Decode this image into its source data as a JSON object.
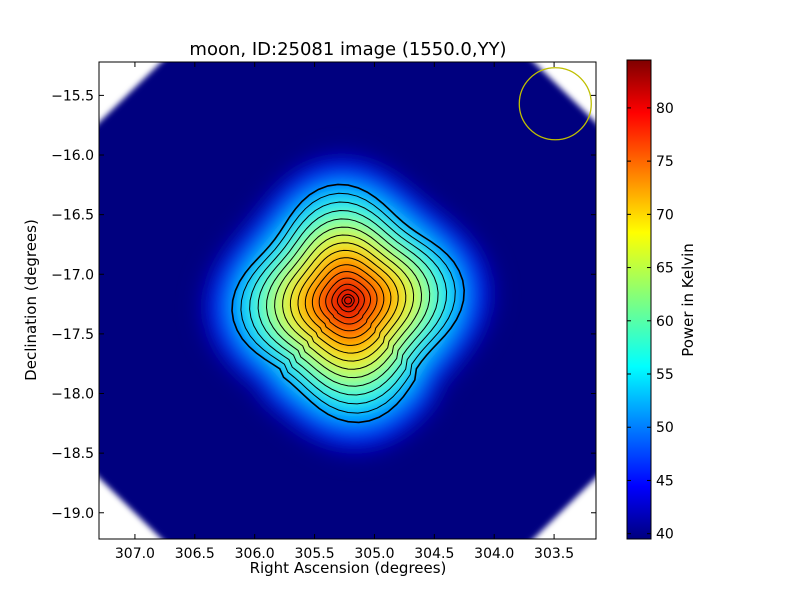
{
  "chart_data": {
    "type": "heatmap",
    "title": "moon, ID:25081 image (1550.0,YY)",
    "xlabel": "Right Ascension (degrees)",
    "ylabel": "Declination (degrees)",
    "xlim": [
      307.3,
      303.15
    ],
    "ylim": [
      -19.22,
      -15.22
    ],
    "x_ticks": [
      307.0,
      306.5,
      306.0,
      305.5,
      305.0,
      304.5,
      304.0,
      303.5
    ],
    "x_tick_labels": [
      "307.0",
      "306.5",
      "306.0",
      "305.5",
      "305.0",
      "304.5",
      "304.0",
      "303.5"
    ],
    "y_ticks": [
      -15.5,
      -16.0,
      -16.5,
      -17.0,
      -17.5,
      -18.0,
      -18.5,
      -19.0
    ],
    "y_tick_labels": [
      "−15.5",
      "−16.0",
      "−16.5",
      "−17.0",
      "−17.5",
      "−18.0",
      "−18.5",
      "−19.0"
    ],
    "grid": false,
    "colormap": "jet",
    "colorbar": {
      "label": "Power in Kelvin",
      "min": 39.5,
      "max": 84.5,
      "ticks": [
        40,
        45,
        50,
        55,
        60,
        65,
        70,
        75,
        80
      ],
      "tick_labels": [
        "40",
        "45",
        "50",
        "55",
        "60",
        "65",
        "70",
        "75",
        "80"
      ]
    },
    "background_level": 40,
    "source": {
      "ra": 305.22,
      "dec": -17.22,
      "peak": 84
    },
    "contour_count": 16,
    "beam_marker": {
      "ra": 303.49,
      "dec": -15.57,
      "color": "#bfbf00"
    },
    "masked_corners": true
  }
}
